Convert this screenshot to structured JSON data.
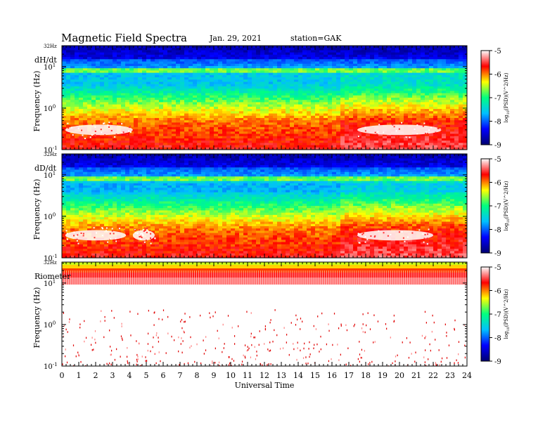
{
  "header": {
    "title": "Magnetic Field Spectra",
    "date": "Jan. 29, 2021",
    "station": "station=GAK"
  },
  "chart_data": {
    "type": "heatmap",
    "xlabel": "Universal Time",
    "x_ticks": [
      "0",
      "1",
      "2",
      "3",
      "4",
      "5",
      "6",
      "7",
      "8",
      "9",
      "10",
      "11",
      "12",
      "13",
      "14",
      "15",
      "16",
      "17",
      "18",
      "19",
      "20",
      "21",
      "22",
      "23",
      "24"
    ],
    "xlim": [
      0,
      24
    ],
    "ylabel": "Frequency (Hz)",
    "y_scale": "log",
    "ylim": [
      0.1,
      32
    ],
    "y_ticks": [
      {
        "base": "10",
        "exp": "-1",
        "value": 0.1
      },
      {
        "base": "10",
        "exp": "0",
        "value": 1
      },
      {
        "base": "10",
        "exp": "1",
        "value": 10
      }
    ],
    "y_top_label": "32Hz",
    "colorbar": {
      "label": "log",
      "label_sub": "10",
      "label_rest": "(PSD)(V^2/Hz)",
      "range": [
        -9,
        -5
      ],
      "ticks": [
        "-5",
        "-6",
        "-7",
        "-8",
        "-9"
      ],
      "colors": [
        "#000070",
        "#0000ff",
        "#00c0ff",
        "#00ff80",
        "#ffff00",
        "#ff0000",
        "#ffffff"
      ]
    },
    "panels": [
      {
        "name": "dH/dt",
        "white_patches": [
          {
            "t0": 0.2,
            "t1": 4.2
          },
          {
            "t0": 17.5,
            "t1": 22.5
          }
        ]
      },
      {
        "name": "dD/dt",
        "white_patches": [
          {
            "t0": 0.2,
            "t1": 3.8
          },
          {
            "t0": 4.2,
            "t1": 5.5
          },
          {
            "t0": 17.5,
            "t1": 22.0
          }
        ]
      },
      {
        "name": "Riometer"
      }
    ]
  }
}
